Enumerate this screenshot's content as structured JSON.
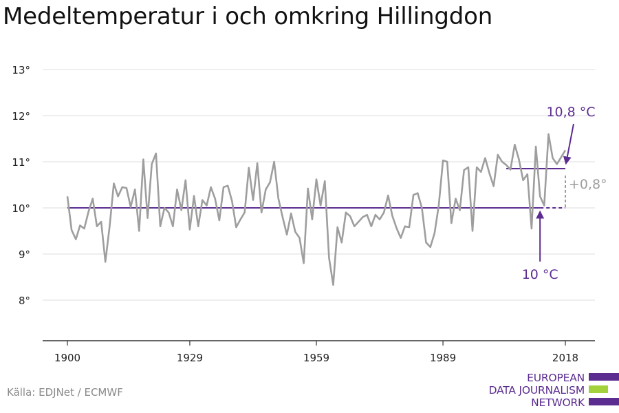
{
  "title": "Medeltemperatur i och omkring Hillingdon",
  "source": "Källa: EDJNet / ECMWF",
  "logo": {
    "lines": [
      "EUROPEAN",
      "DATA JOURNALISM",
      "NETWORK"
    ],
    "colors": {
      "purple": "#5c2d91",
      "green": "#a3d13c"
    }
  },
  "colors": {
    "series": "#9e9e9e",
    "baseline": "#5c2d91",
    "grid": "#dddddd",
    "axis": "#333333",
    "annotation_purple": "#5c2d91",
    "annotation_gray": "#9e9e9e"
  },
  "chart_data": {
    "type": "line",
    "title": "Medeltemperatur i och omkring Hillingdon",
    "x_ticks": [
      1900,
      1929,
      1959,
      1989,
      2018
    ],
    "x_tick_labels": [
      "1900",
      "1929",
      "1959",
      "1989",
      "2018"
    ],
    "y_ticks": [
      8,
      9,
      10,
      11,
      12,
      13
    ],
    "y_tick_labels": [
      "8°",
      "9°",
      "10°",
      "11°",
      "12°",
      "13°"
    ],
    "xlim": [
      1894,
      2024
    ],
    "ylim": [
      7,
      13.5
    ],
    "grid": true,
    "series": [
      {
        "x": [
          1900,
          1901,
          1902,
          1903,
          1904,
          1905,
          1906,
          1907,
          1908,
          1909,
          1910,
          1911,
          1912,
          1913,
          1914,
          1915,
          1916,
          1917,
          1918,
          1919,
          1920,
          1921,
          1922,
          1923,
          1924,
          1925,
          1926,
          1927,
          1928,
          1929,
          1930,
          1931,
          1932,
          1933,
          1934,
          1935,
          1936,
          1937,
          1938,
          1939,
          1940,
          1941,
          1942,
          1943,
          1944,
          1945,
          1946,
          1947,
          1948,
          1949,
          1950,
          1951,
          1952,
          1953,
          1954,
          1955,
          1956,
          1957,
          1958,
          1959,
          1960,
          1961,
          1962,
          1963,
          1964,
          1965,
          1966,
          1967,
          1968,
          1969,
          1970,
          1971,
          1972,
          1973,
          1974,
          1975,
          1976,
          1977,
          1978,
          1979,
          1980,
          1981,
          1982,
          1983,
          1984,
          1985,
          1986,
          1987,
          1988,
          1989,
          1990,
          1991,
          1992,
          1993,
          1994,
          1995,
          1996,
          1997,
          1998,
          1999,
          2000,
          2001,
          2002,
          2003,
          2004,
          2005,
          2006,
          2007,
          2008,
          2009,
          2010,
          2011,
          2012,
          2013,
          2014,
          2015,
          2016,
          2017,
          2018
        ],
        "values": [
          10.25,
          9.52,
          9.32,
          9.62,
          9.55,
          9.92,
          10.2,
          9.6,
          9.7,
          8.83,
          9.6,
          10.53,
          10.25,
          10.45,
          10.43,
          10.02,
          10.4,
          9.5,
          11.05,
          9.78,
          10.95,
          11.18,
          9.6,
          10.0,
          9.9,
          9.6,
          10.4,
          9.95,
          10.6,
          9.53,
          10.26,
          9.6,
          10.17,
          10.05,
          10.45,
          10.2,
          9.73,
          10.45,
          10.48,
          10.15,
          9.58,
          9.75,
          9.9,
          10.87,
          10.17,
          10.97,
          9.9,
          10.4,
          10.55,
          11.0,
          10.2,
          9.8,
          9.42,
          9.88,
          9.48,
          9.35,
          8.8,
          10.42,
          9.75,
          10.62,
          10.05,
          10.58,
          8.92,
          8.33,
          9.58,
          9.25,
          9.9,
          9.82,
          9.6,
          9.7,
          9.8,
          9.85,
          9.6,
          9.85,
          9.75,
          9.9,
          10.27,
          9.83,
          9.56,
          9.35,
          9.6,
          9.58,
          10.28,
          10.32,
          10.0,
          9.25,
          9.15,
          9.45,
          10.05,
          11.03,
          11.0,
          9.67,
          10.2,
          9.95,
          10.82,
          10.88,
          9.5,
          10.88,
          10.78,
          11.08,
          10.75,
          10.47,
          11.15,
          11.0,
          10.93,
          10.83,
          11.37,
          11.05,
          10.6,
          10.73,
          9.55,
          11.33,
          10.25,
          10.05,
          11.6,
          11.08,
          10.95,
          11.1,
          11.25
        ]
      }
    ],
    "baseline": {
      "value": 10.0,
      "label": "10 °C",
      "x_label": 2012,
      "from": 1900,
      "to": 2018
    },
    "recent": {
      "value": 10.85,
      "label": "10,8 °C",
      "from": 2004,
      "to": 2018
    },
    "difference": {
      "label": "+0,8°",
      "x": 2018
    }
  }
}
